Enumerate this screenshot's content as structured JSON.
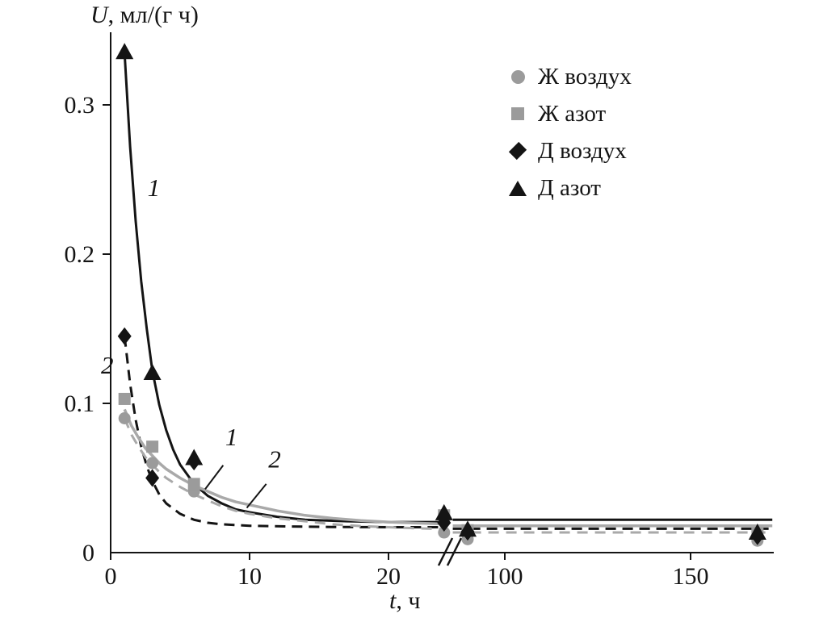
{
  "axes": {
    "ylabel_italic": "U",
    "ylabel_rest": ", мл/(г ч)",
    "xlabel_italic": "t",
    "xlabel_rest": ", ч"
  },
  "legend": {
    "items": [
      {
        "label": "Ж воздух",
        "marker": "circle",
        "color": "#9b9b9b"
      },
      {
        "label": "Ж азот",
        "marker": "square",
        "color": "#9b9b9b"
      },
      {
        "label": "Д воздух",
        "marker": "diamond",
        "color": "#141414"
      },
      {
        "label": "Д азот",
        "marker": "triangle",
        "color": "#141414"
      }
    ]
  },
  "chart_data": {
    "type": "scatter",
    "title": "",
    "xlabel": "t, ч",
    "ylabel": "U, мл/(г ч)",
    "x_axis": {
      "ticks": [
        "0",
        "10",
        "20",
        "100",
        "150"
      ],
      "break_between": [
        24,
        85
      ],
      "max": 175,
      "grid": false
    },
    "y_axis": {
      "ticks": [
        "0",
        "0.1",
        "0.2",
        "0.3"
      ],
      "max": 0.35,
      "grid": false
    },
    "legend_position": "upper-right-inside",
    "series": [
      {
        "name": "Ж воздух",
        "marker": "circle",
        "color": "#9b9b9b",
        "points": [
          [
            1,
            0.09
          ],
          [
            3,
            0.06
          ],
          [
            6,
            0.041
          ],
          [
            24,
            0.0135
          ],
          [
            90,
            0.009
          ],
          [
            168,
            0.008
          ]
        ]
      },
      {
        "name": "Ж азот",
        "marker": "square",
        "color": "#9b9b9b",
        "points": [
          [
            1,
            0.103
          ],
          [
            3,
            0.071
          ],
          [
            6,
            0.046
          ],
          [
            24,
            0.025
          ],
          [
            90,
            0.015
          ],
          [
            168,
            0.013
          ]
        ]
      },
      {
        "name": "Д воздух",
        "marker": "diamond",
        "color": "#141414",
        "points": [
          [
            1,
            0.145
          ],
          [
            3,
            0.05
          ],
          [
            6,
            0.061
          ],
          [
            24,
            0.02
          ],
          [
            90,
            0.014
          ],
          [
            168,
            0.011
          ]
        ]
      },
      {
        "name": "Д азот",
        "marker": "triangle",
        "color": "#141414",
        "points": [
          [
            1,
            0.335
          ],
          [
            3,
            0.12
          ],
          [
            6,
            0.063
          ],
          [
            24,
            0.026
          ],
          [
            90,
            0.015
          ],
          [
            168,
            0.013
          ]
        ]
      }
    ],
    "curves": [
      {
        "id": "curve-1-black-solid",
        "color": "#141414",
        "dash": null,
        "width": 3,
        "pre": [
          [
            1,
            0.335
          ],
          [
            1.4,
            0.272
          ],
          [
            1.8,
            0.222
          ],
          [
            2.2,
            0.182
          ],
          [
            2.6,
            0.15
          ],
          [
            3,
            0.122
          ],
          [
            3.5,
            0.099
          ],
          [
            4,
            0.082
          ],
          [
            4.5,
            0.069
          ],
          [
            5,
            0.059
          ],
          [
            6,
            0.046
          ],
          [
            7,
            0.038
          ],
          [
            8,
            0.033
          ],
          [
            9,
            0.029
          ],
          [
            10,
            0.027
          ],
          [
            12,
            0.024
          ],
          [
            14,
            0.022
          ],
          [
            17,
            0.021
          ],
          [
            20,
            0.0205
          ],
          [
            24,
            0.0205
          ]
        ],
        "post": [
          [
            86,
            0.022
          ],
          [
            172,
            0.022
          ]
        ]
      },
      {
        "id": "curve-2-black-dashed",
        "color": "#141414",
        "dash": "13,8",
        "width": 3,
        "pre": [
          [
            1,
            0.145
          ],
          [
            1.4,
            0.113
          ],
          [
            1.8,
            0.089
          ],
          [
            2.2,
            0.071
          ],
          [
            2.6,
            0.058
          ],
          [
            3,
            0.048
          ],
          [
            3.5,
            0.039
          ],
          [
            4,
            0.033
          ],
          [
            5,
            0.026
          ],
          [
            6,
            0.022
          ],
          [
            7,
            0.02
          ],
          [
            8,
            0.019
          ],
          [
            10,
            0.018
          ],
          [
            13,
            0.0175
          ],
          [
            16,
            0.0172
          ],
          [
            20,
            0.017
          ],
          [
            24,
            0.017
          ]
        ],
        "post": [
          [
            86,
            0.016
          ],
          [
            172,
            0.016
          ]
        ]
      },
      {
        "id": "curve-1-gray-solid",
        "color": "#a9a9a9",
        "dash": null,
        "width": 3.5,
        "pre": [
          [
            1,
            0.096
          ],
          [
            1.5,
            0.085
          ],
          [
            2,
            0.077
          ],
          [
            2.5,
            0.07
          ],
          [
            3,
            0.065
          ],
          [
            3.5,
            0.06
          ],
          [
            4,
            0.056
          ],
          [
            5,
            0.05
          ],
          [
            6,
            0.045
          ],
          [
            7,
            0.041
          ],
          [
            8,
            0.037
          ],
          [
            9,
            0.034
          ],
          [
            10,
            0.032
          ],
          [
            12,
            0.028
          ],
          [
            14,
            0.025
          ],
          [
            16,
            0.023
          ],
          [
            18,
            0.0215
          ],
          [
            20,
            0.0205
          ],
          [
            22,
            0.0198
          ],
          [
            24,
            0.0192
          ]
        ],
        "post": [
          [
            86,
            0.018
          ],
          [
            172,
            0.018
          ]
        ]
      },
      {
        "id": "curve-2-gray-dashed",
        "color": "#a9a9a9",
        "dash": "13,9",
        "width": 3,
        "pre": [
          [
            1,
            0.09
          ],
          [
            1.5,
            0.079
          ],
          [
            2,
            0.071
          ],
          [
            2.5,
            0.064
          ],
          [
            3,
            0.059
          ],
          [
            3.5,
            0.054
          ],
          [
            4,
            0.05
          ],
          [
            5,
            0.044
          ],
          [
            6,
            0.039
          ],
          [
            7,
            0.035
          ],
          [
            8,
            0.031
          ],
          [
            9,
            0.028
          ],
          [
            10,
            0.026
          ],
          [
            12,
            0.023
          ],
          [
            14,
            0.021
          ],
          [
            16,
            0.019
          ],
          [
            18,
            0.0178
          ],
          [
            20,
            0.017
          ],
          [
            22,
            0.0163
          ],
          [
            24,
            0.0158
          ]
        ],
        "post": [
          [
            86,
            0.0135
          ],
          [
            172,
            0.0135
          ]
        ]
      }
    ],
    "annotations": [
      {
        "text": "1",
        "t": 3.1,
        "u": 0.239
      },
      {
        "text": "2",
        "t": -0.25,
        "u": 0.12
      },
      {
        "text": "1",
        "t": 8.7,
        "u": 0.072
      },
      {
        "text": "2",
        "t": 11.8,
        "u": 0.057
      }
    ],
    "leader_lines": [
      {
        "from": [
          8.1,
          0.0585
        ],
        "to": [
          6.8,
          0.0425
        ]
      },
      {
        "from": [
          11.2,
          0.046
        ],
        "to": [
          9.8,
          0.03
        ]
      }
    ]
  }
}
